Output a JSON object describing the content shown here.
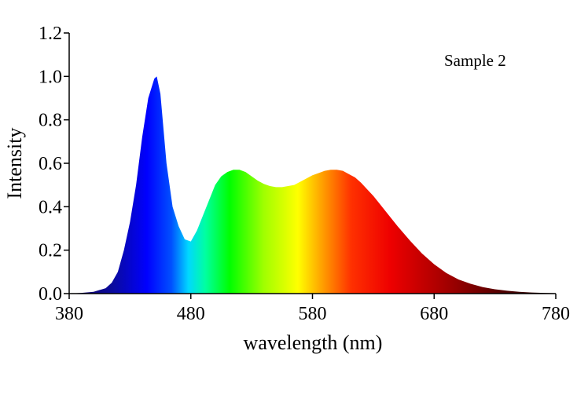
{
  "chart_data": {
    "type": "area",
    "title": "",
    "xlabel": "wavelength (nm)",
    "ylabel": "Intensity",
    "annotation": "Sample 2",
    "xlim": [
      380,
      780
    ],
    "ylim": [
      0.0,
      1.2
    ],
    "xticks": [
      380,
      480,
      580,
      680,
      780
    ],
    "yticks": [
      "0.0",
      "0.2",
      "0.4",
      "0.6",
      "0.8",
      "1.0",
      "1.2"
    ],
    "grid": false,
    "fill": "visible-spectrum gradient",
    "series": [
      {
        "x": [
          380,
          390,
          400,
          410,
          415,
          420,
          425,
          430,
          435,
          440,
          445,
          450,
          452,
          455,
          460,
          465,
          470,
          475,
          480,
          485,
          490,
          495,
          500,
          505,
          510,
          515,
          520,
          525,
          530,
          535,
          540,
          545,
          550,
          555,
          560,
          565,
          570,
          575,
          580,
          585,
          590,
          595,
          600,
          605,
          610,
          615,
          620,
          625,
          630,
          635,
          640,
          650,
          660,
          670,
          680,
          690,
          700,
          710,
          720,
          730,
          740,
          750,
          760,
          770,
          780
        ],
        "values": [
          0.0,
          0.003,
          0.008,
          0.025,
          0.05,
          0.1,
          0.2,
          0.33,
          0.5,
          0.72,
          0.9,
          0.99,
          1.0,
          0.92,
          0.6,
          0.4,
          0.31,
          0.25,
          0.24,
          0.29,
          0.36,
          0.43,
          0.5,
          0.54,
          0.56,
          0.57,
          0.57,
          0.56,
          0.54,
          0.52,
          0.505,
          0.495,
          0.49,
          0.49,
          0.495,
          0.5,
          0.515,
          0.53,
          0.545,
          0.555,
          0.565,
          0.57,
          0.57,
          0.565,
          0.55,
          0.535,
          0.51,
          0.48,
          0.45,
          0.415,
          0.38,
          0.31,
          0.245,
          0.185,
          0.135,
          0.095,
          0.065,
          0.045,
          0.03,
          0.02,
          0.013,
          0.008,
          0.005,
          0.003,
          0.002
        ]
      }
    ]
  }
}
